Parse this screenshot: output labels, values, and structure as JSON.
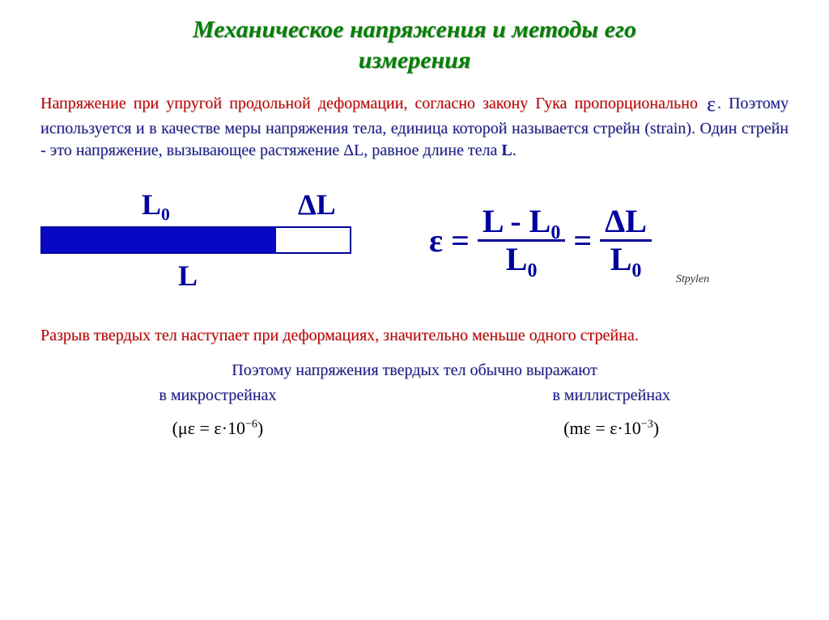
{
  "title_line1": "Механическое напряжения и методы его",
  "title_line2": "измерения",
  "para1_hl1": "Напряжение при упругой продольной деформации, согласно закону Гука пропорционально",
  "para1_eps": "ε",
  "para1_rest": ". Поэтому используется и в качестве меры напряжения тела, единица которой называется стрейн (strain).   Один  стрейн  -  это  напряжение, вызывающее растяжение ",
  "para1_dL": "ΔL",
  "para1_tail1": ", равное длине тела ",
  "para1_L": "L",
  "para1_tail2": ".",
  "diagram": {
    "L0_label": "L₀",
    "dL_label": "ΔL",
    "L_label": "L",
    "fill_percent": 76,
    "bar_fill_color": "#0808c4",
    "bar_border_color": "#00009c"
  },
  "formula": {
    "lhs": "ε",
    "eq": "=",
    "num1": "L - L₀",
    "den1": "L₀",
    "num2": "ΔL",
    "den2": "L₀"
  },
  "signature": "Stpylen",
  "para2": "Разрыв твердых тел наступает при деформациях, значительно меньше одного стрейна.",
  "para3": "Поэтому напряжения твердых тел обычно выражают",
  "col1_label": "в микрострейнах",
  "col1_formula_prefix": "(με = ε·10",
  "col1_formula_exp": "−6",
  "col1_formula_suffix": ")",
  "col2_label": "в миллистрейнах",
  "col2_formula_prefix": "(mε = ε·10",
  "col2_formula_exp": "−3",
  "col2_formula_suffix": ")",
  "colors": {
    "title": "#008000",
    "body_text": "#1a1a8a",
    "highlight": "#c00000",
    "formula": "#00009c"
  }
}
